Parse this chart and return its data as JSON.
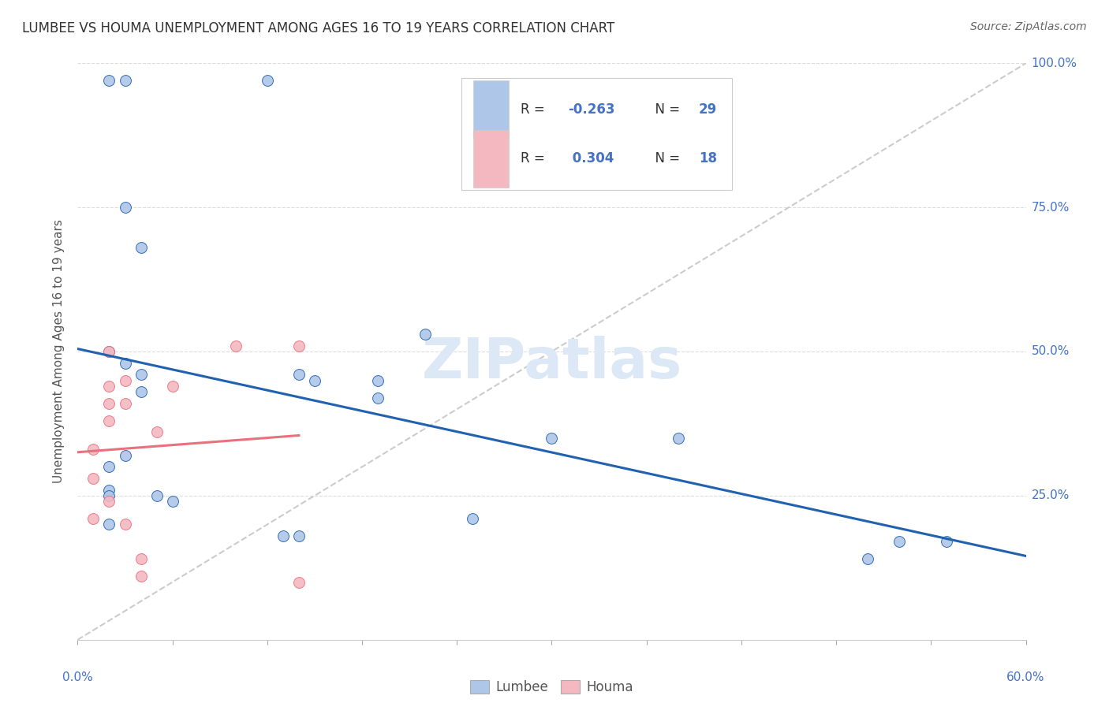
{
  "title": "LUMBEE VS HOUMA UNEMPLOYMENT AMONG AGES 16 TO 19 YEARS CORRELATION CHART",
  "source": "Source: ZipAtlas.com",
  "ylabel": "Unemployment Among Ages 16 to 19 years",
  "xlim": [
    0.0,
    0.6
  ],
  "ylim": [
    0.0,
    1.0
  ],
  "yticks": [
    0.0,
    0.25,
    0.5,
    0.75,
    1.0
  ],
  "ytick_labels": [
    "",
    "25.0%",
    "50.0%",
    "75.0%",
    "100.0%"
  ],
  "lumbee_R": -0.263,
  "lumbee_N": 29,
  "houma_R": 0.304,
  "houma_N": 18,
  "lumbee_color": "#aec6e8",
  "houma_color": "#f4b8c1",
  "lumbee_line_color": "#2062b0",
  "houma_line_color": "#e8717d",
  "ref_line_color": "#cccccc",
  "background_color": "#ffffff",
  "grid_color": "#dddddd",
  "lumbee_x": [
    0.02,
    0.03,
    0.12,
    0.14,
    0.15,
    0.02,
    0.03,
    0.04,
    0.04,
    0.05,
    0.06,
    0.13,
    0.14,
    0.19,
    0.19,
    0.22,
    0.25,
    0.3,
    0.02,
    0.02,
    0.02,
    0.02,
    0.03,
    0.38,
    0.5,
    0.52,
    0.55,
    0.03,
    0.04
  ],
  "lumbee_y": [
    0.97,
    0.97,
    0.97,
    0.46,
    0.45,
    0.5,
    0.48,
    0.46,
    0.43,
    0.25,
    0.24,
    0.18,
    0.18,
    0.45,
    0.42,
    0.53,
    0.21,
    0.35,
    0.3,
    0.26,
    0.25,
    0.2,
    0.32,
    0.35,
    0.14,
    0.17,
    0.17,
    0.75,
    0.68
  ],
  "houma_x": [
    0.01,
    0.01,
    0.01,
    0.02,
    0.02,
    0.02,
    0.02,
    0.02,
    0.03,
    0.03,
    0.03,
    0.04,
    0.04,
    0.05,
    0.06,
    0.14,
    0.14,
    0.1
  ],
  "houma_y": [
    0.33,
    0.28,
    0.21,
    0.5,
    0.44,
    0.41,
    0.38,
    0.24,
    0.45,
    0.41,
    0.2,
    0.14,
    0.11,
    0.36,
    0.44,
    0.1,
    0.51,
    0.51
  ],
  "title_fontsize": 12,
  "source_fontsize": 10,
  "axis_label_fontsize": 11,
  "tick_fontsize": 11,
  "legend_fontsize": 12,
  "marker_size": 100,
  "zipatlas_text": "ZIPatlas",
  "zipatlas_color": "#dce8f5"
}
